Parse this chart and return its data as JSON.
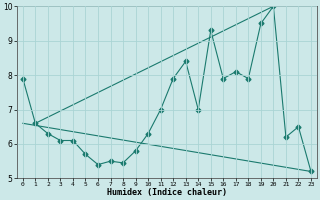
{
  "xlabel": "Humidex (Indice chaleur)",
  "ylabel": "",
  "background_color": "#cce8e8",
  "line_color": "#1a7a6e",
  "grid_color": "#aad4d4",
  "xlim": [
    -0.5,
    23.5
  ],
  "ylim": [
    5,
    10
  ],
  "yticks": [
    5,
    6,
    7,
    8,
    9,
    10
  ],
  "xticks": [
    0,
    1,
    2,
    3,
    4,
    5,
    6,
    7,
    8,
    9,
    10,
    11,
    12,
    13,
    14,
    15,
    16,
    17,
    18,
    19,
    20,
    21,
    22,
    23
  ],
  "series": [
    {
      "x": [
        0,
        1,
        2,
        3,
        4,
        5,
        6,
        7,
        8,
        9,
        10,
        11,
        12,
        13,
        14,
        15,
        16,
        17,
        18,
        19,
        20,
        21,
        22,
        23
      ],
      "y": [
        7.9,
        6.6,
        6.3,
        6.1,
        6.1,
        5.7,
        5.4,
        5.5,
        5.45,
        5.8,
        6.3,
        7.0,
        7.9,
        8.4,
        7.0,
        9.3,
        7.9,
        8.1,
        7.9,
        9.5,
        10.0,
        6.2,
        6.5,
        5.2
      ],
      "marker": "D",
      "markersize": 2.5
    },
    {
      "x": [
        0,
        23
      ],
      "y": [
        6.6,
        5.2
      ],
      "marker": null,
      "markersize": 0
    },
    {
      "x": [
        1,
        20
      ],
      "y": [
        6.6,
        10.0
      ],
      "marker": null,
      "markersize": 0
    }
  ]
}
